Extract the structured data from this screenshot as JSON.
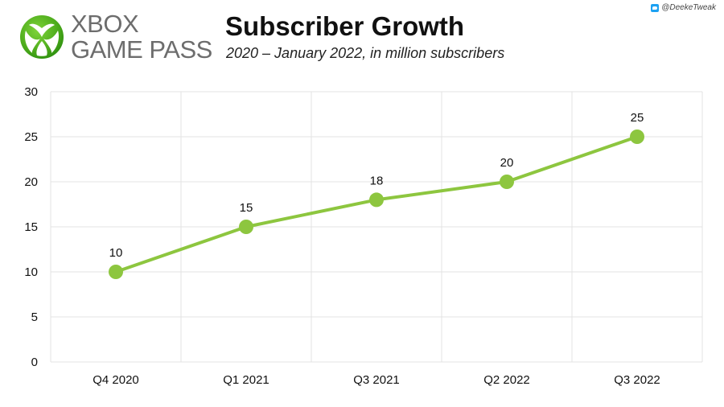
{
  "brand": {
    "line1": "XBOX",
    "line2": "GAME PASS",
    "color": "#6d6d6d",
    "logo_icon": "xbox-sphere-icon",
    "logo_colors": [
      "#5dc21e",
      "#2d8f0f"
    ]
  },
  "header": {
    "title": "Subscriber Growth",
    "subtitle": "2020 – January 2022, in million subscribers",
    "handle": "@DeekeTweak",
    "handle_icon": "twitter-icon"
  },
  "chart_data": {
    "type": "line",
    "title": "Subscriber Growth",
    "subtitle": "2020 – January 2022, in million subscribers",
    "categories": [
      "Q4 2020",
      "Q1 2021",
      "Q3 2021",
      "Q2 2022",
      "Q3 2022"
    ],
    "series": [
      {
        "values": [
          10,
          15,
          18,
          20,
          25
        ],
        "color": "#8dc63f"
      }
    ],
    "ylim": [
      0,
      30
    ],
    "yticks": [
      0,
      5,
      10,
      15,
      20,
      25,
      30
    ],
    "grid": true,
    "legend": "none",
    "data_labels": true
  }
}
